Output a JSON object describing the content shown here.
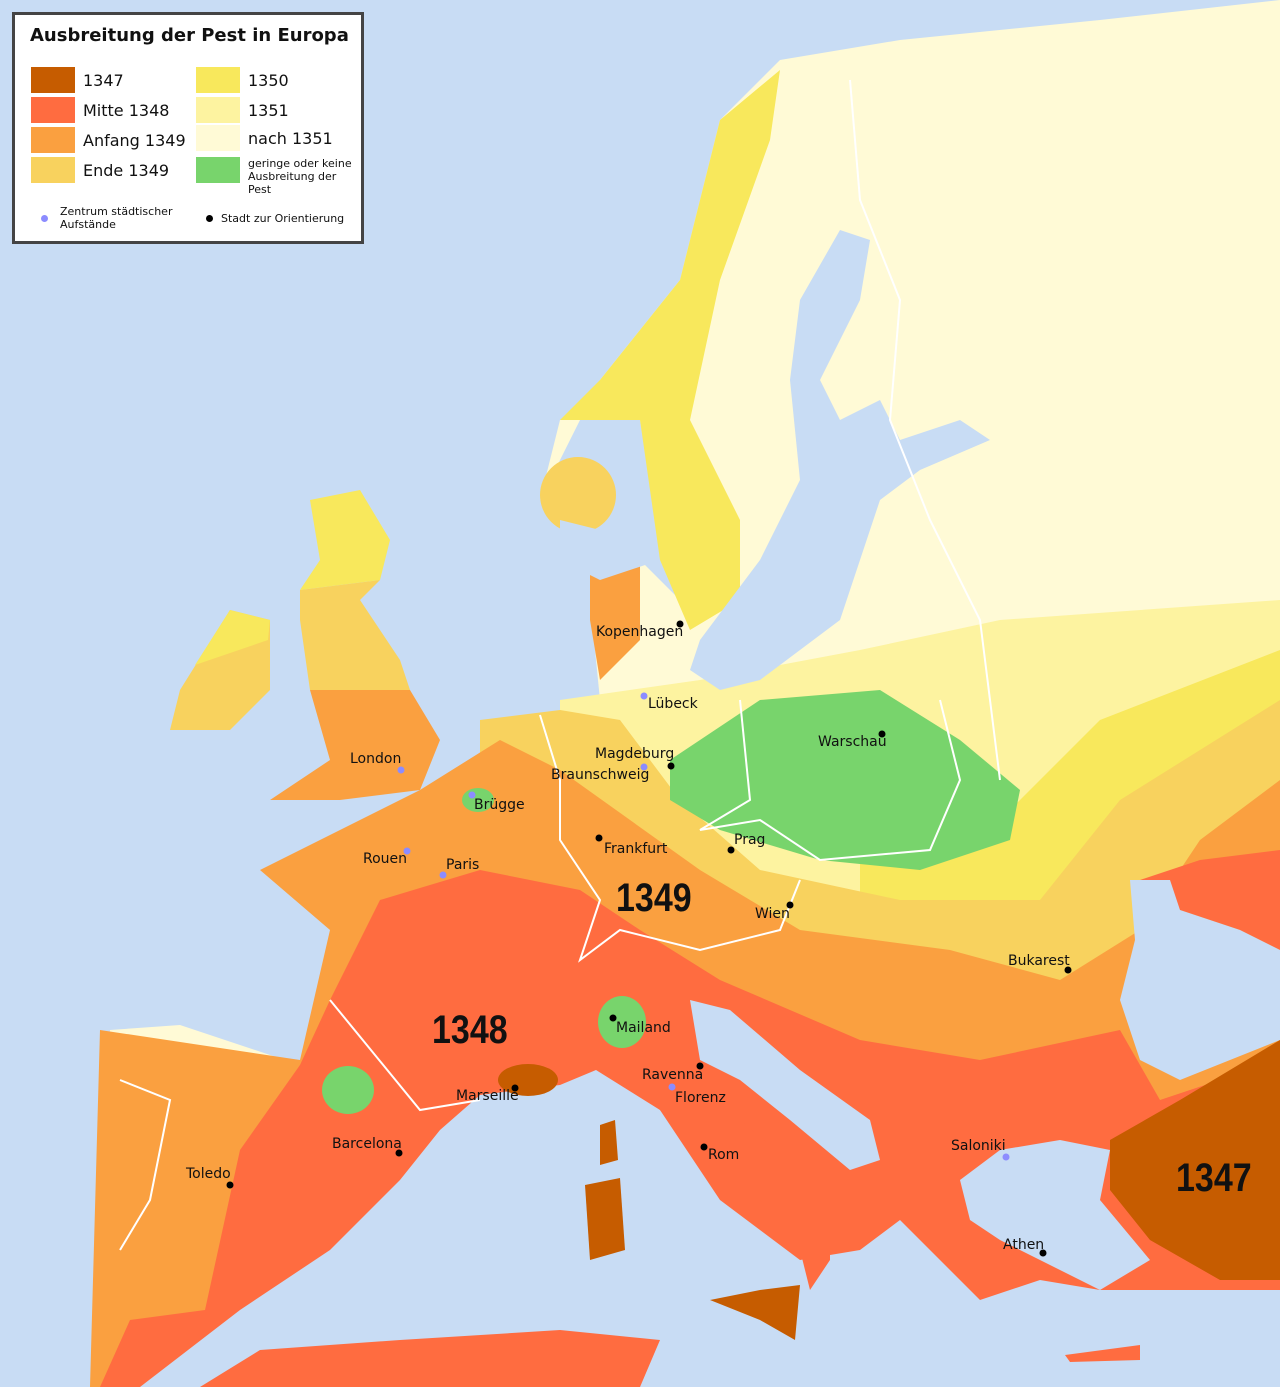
{
  "legend": {
    "title": "Ausbreitung der Pest in Europa",
    "items": [
      {
        "label": "1347",
        "color": "#c65c00"
      },
      {
        "label": "Mitte 1348",
        "color": "#ff6c40"
      },
      {
        "label": "Anfang 1349",
        "color": "#faa040"
      },
      {
        "label": "Ende 1349",
        "color": "#f8d25e"
      },
      {
        "label": "1350",
        "color": "#f8e85c"
      },
      {
        "label": "1351",
        "color": "#fdf3a0"
      },
      {
        "label": "nach 1351",
        "color": "#fffad6"
      },
      {
        "label": "geringe oder keine Ausbreitung der Pest",
        "color": "#78d46c"
      }
    ],
    "uprising_label": "Zentrum städtischer Aufstände",
    "uprising_color": "#8c8cff",
    "orientation_label": "Stadt zur Orientierung",
    "orientation_color": "#000000"
  },
  "sea_color": "#c8dcf4",
  "years": {
    "y1349": "1349",
    "y1348": "1348",
    "y1347": "1347"
  },
  "cities": [
    {
      "name": "Kopenhagen",
      "type": "orientation"
    },
    {
      "name": "Lübeck",
      "type": "uprising"
    },
    {
      "name": "Warschau",
      "type": "orientation"
    },
    {
      "name": "Magdeburg",
      "type": "orientation"
    },
    {
      "name": "Braunschweig",
      "type": "uprising"
    },
    {
      "name": "London",
      "type": "uprising"
    },
    {
      "name": "Brügge",
      "type": "uprising"
    },
    {
      "name": "Rouen",
      "type": "uprising"
    },
    {
      "name": "Paris",
      "type": "uprising"
    },
    {
      "name": "Frankfurt",
      "type": "orientation"
    },
    {
      "name": "Prag",
      "type": "orientation"
    },
    {
      "name": "Wien",
      "type": "orientation"
    },
    {
      "name": "Bukarest",
      "type": "orientation"
    },
    {
      "name": "Mailand",
      "type": "orientation"
    },
    {
      "name": "Ravenna",
      "type": "orientation"
    },
    {
      "name": "Florenz",
      "type": "uprising"
    },
    {
      "name": "Marseille",
      "type": "orientation"
    },
    {
      "name": "Barcelona",
      "type": "orientation"
    },
    {
      "name": "Toledo",
      "type": "orientation"
    },
    {
      "name": "Rom",
      "type": "orientation"
    },
    {
      "name": "Saloniki",
      "type": "uprising"
    },
    {
      "name": "Athen",
      "type": "orientation"
    }
  ]
}
